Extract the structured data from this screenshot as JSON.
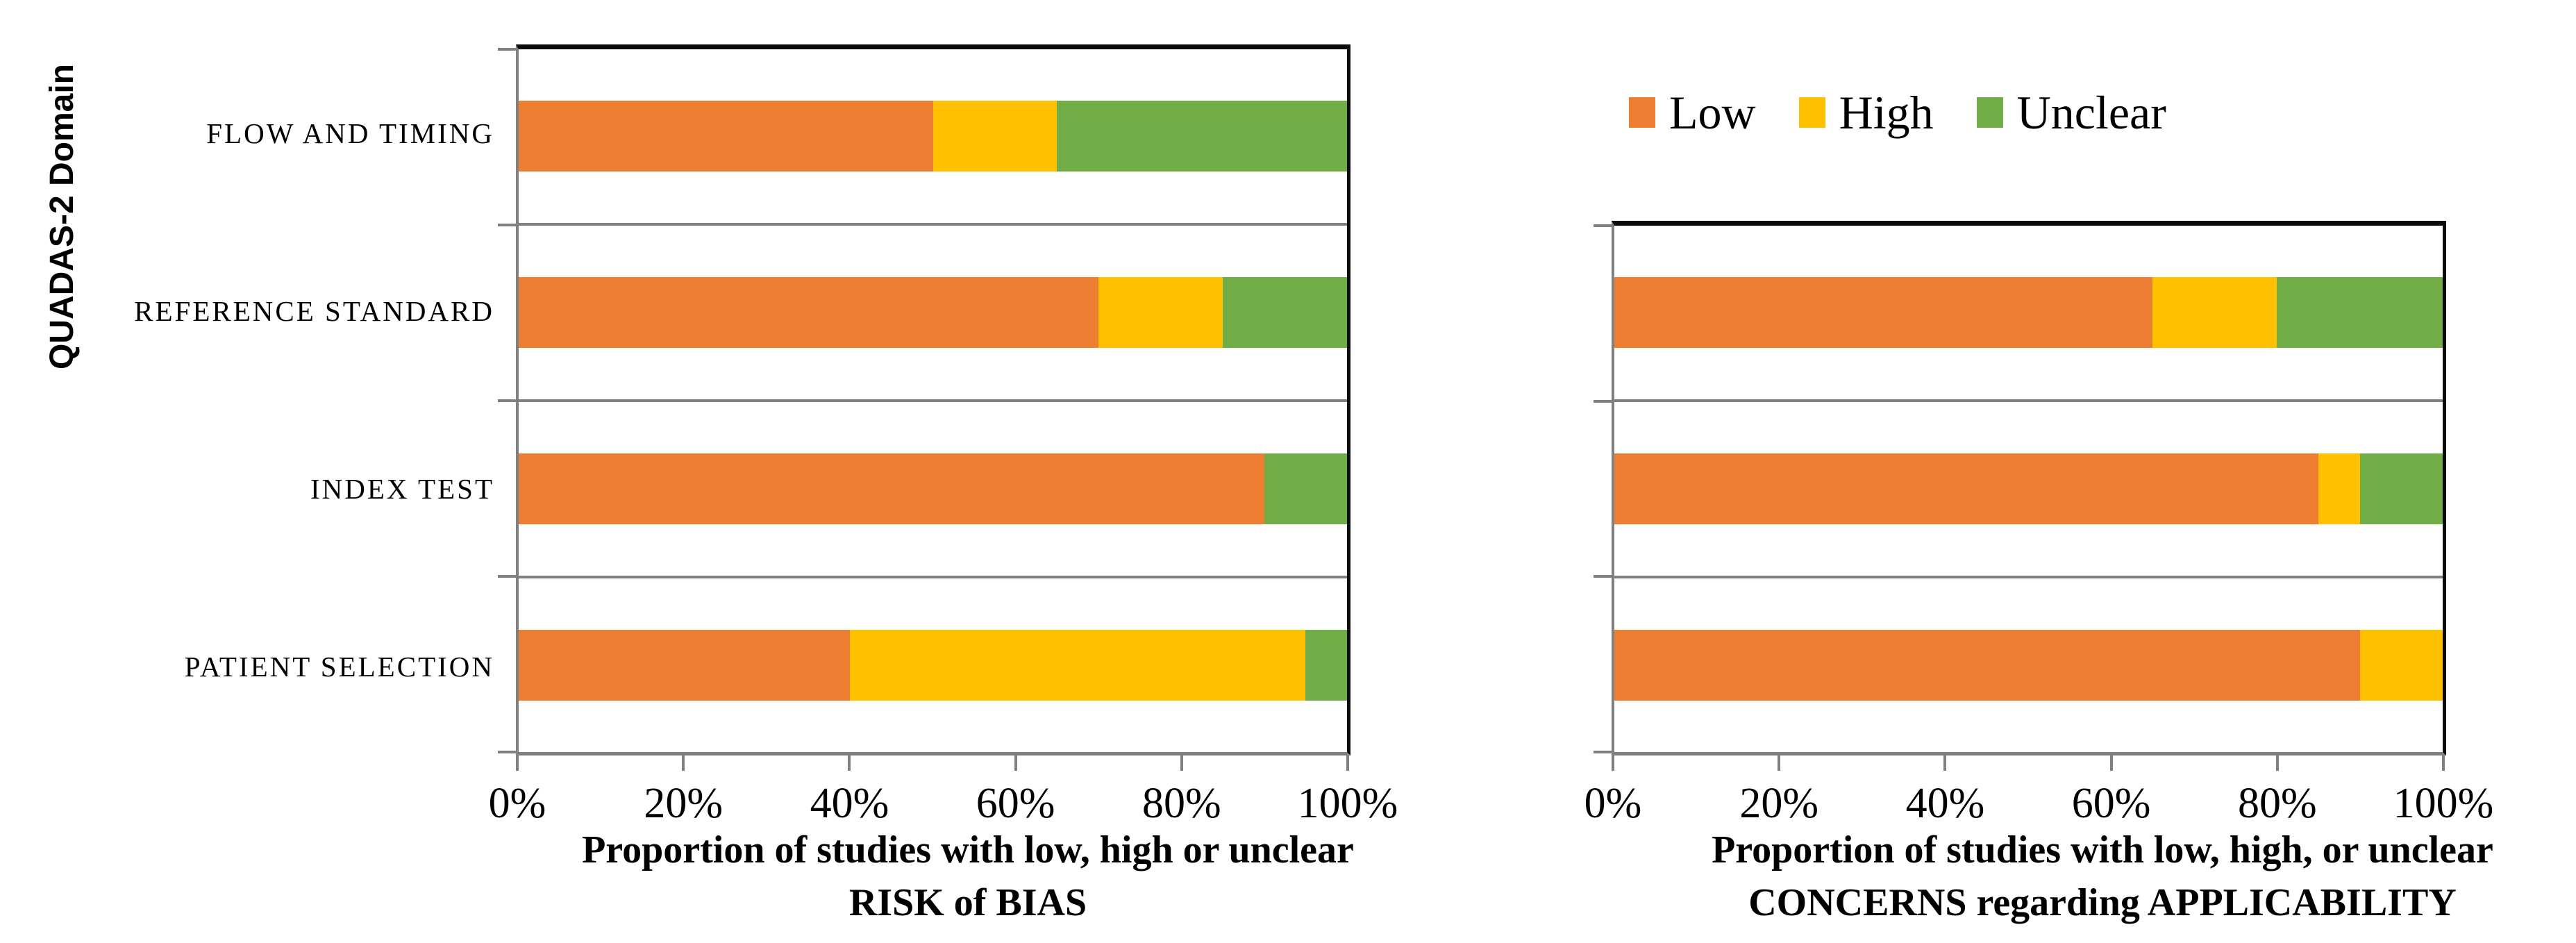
{
  "page": {
    "background": "#ffffff"
  },
  "legend": {
    "items": [
      {
        "label": "Low",
        "color": "#ED7D31"
      },
      {
        "label": "High",
        "color": "#FFC000"
      },
      {
        "label": "Unclear",
        "color": "#70AD47"
      }
    ]
  },
  "chart_data": [
    {
      "type": "bar",
      "orientation": "horizontal",
      "stacked": true,
      "unit": "percent",
      "ylabel": "QUADAS-2 Domain",
      "xlabel_line1": "Proportion of studies with low, high or unclear",
      "xlabel_line2": "RISK of BIAS",
      "categories": [
        "FLOW AND TIMING",
        "REFERENCE STANDARD",
        "INDEX TEST",
        "PATIENT SELECTION"
      ],
      "x_ticks": [
        "0%",
        "20%",
        "40%",
        "60%",
        "80%",
        "100%"
      ],
      "xlim": [
        0,
        100
      ],
      "grid": "category separators on, gray",
      "legend_position": "top-right of figure (shared)",
      "series": [
        {
          "name": "Low",
          "color": "#ED7D31",
          "values": [
            50,
            70,
            90,
            40
          ]
        },
        {
          "name": "High",
          "color": "#FFC000",
          "values": [
            15,
            15,
            0,
            55
          ]
        },
        {
          "name": "Unclear",
          "color": "#70AD47",
          "values": [
            35,
            15,
            10,
            5
          ]
        }
      ]
    },
    {
      "type": "bar",
      "orientation": "horizontal",
      "stacked": true,
      "unit": "percent",
      "ylabel": "",
      "xlabel_line1": "Proportion of studies with low, high, or unclear",
      "xlabel_line2": "CONCERNS regarding APPLICABILITY",
      "categories": [
        "",
        "",
        ""
      ],
      "x_ticks": [
        "0%",
        "20%",
        "40%",
        "60%",
        "80%",
        "100%"
      ],
      "xlim": [
        0,
        100
      ],
      "grid": "category separators on, gray",
      "legend_position": "shared with left chart",
      "series": [
        {
          "name": "Low",
          "color": "#ED7D31",
          "values": [
            65,
            85,
            90
          ]
        },
        {
          "name": "High",
          "color": "#FFC000",
          "values": [
            15,
            5,
            10
          ]
        },
        {
          "name": "Unclear",
          "color": "#70AD47",
          "values": [
            20,
            10,
            0
          ]
        }
      ]
    }
  ]
}
